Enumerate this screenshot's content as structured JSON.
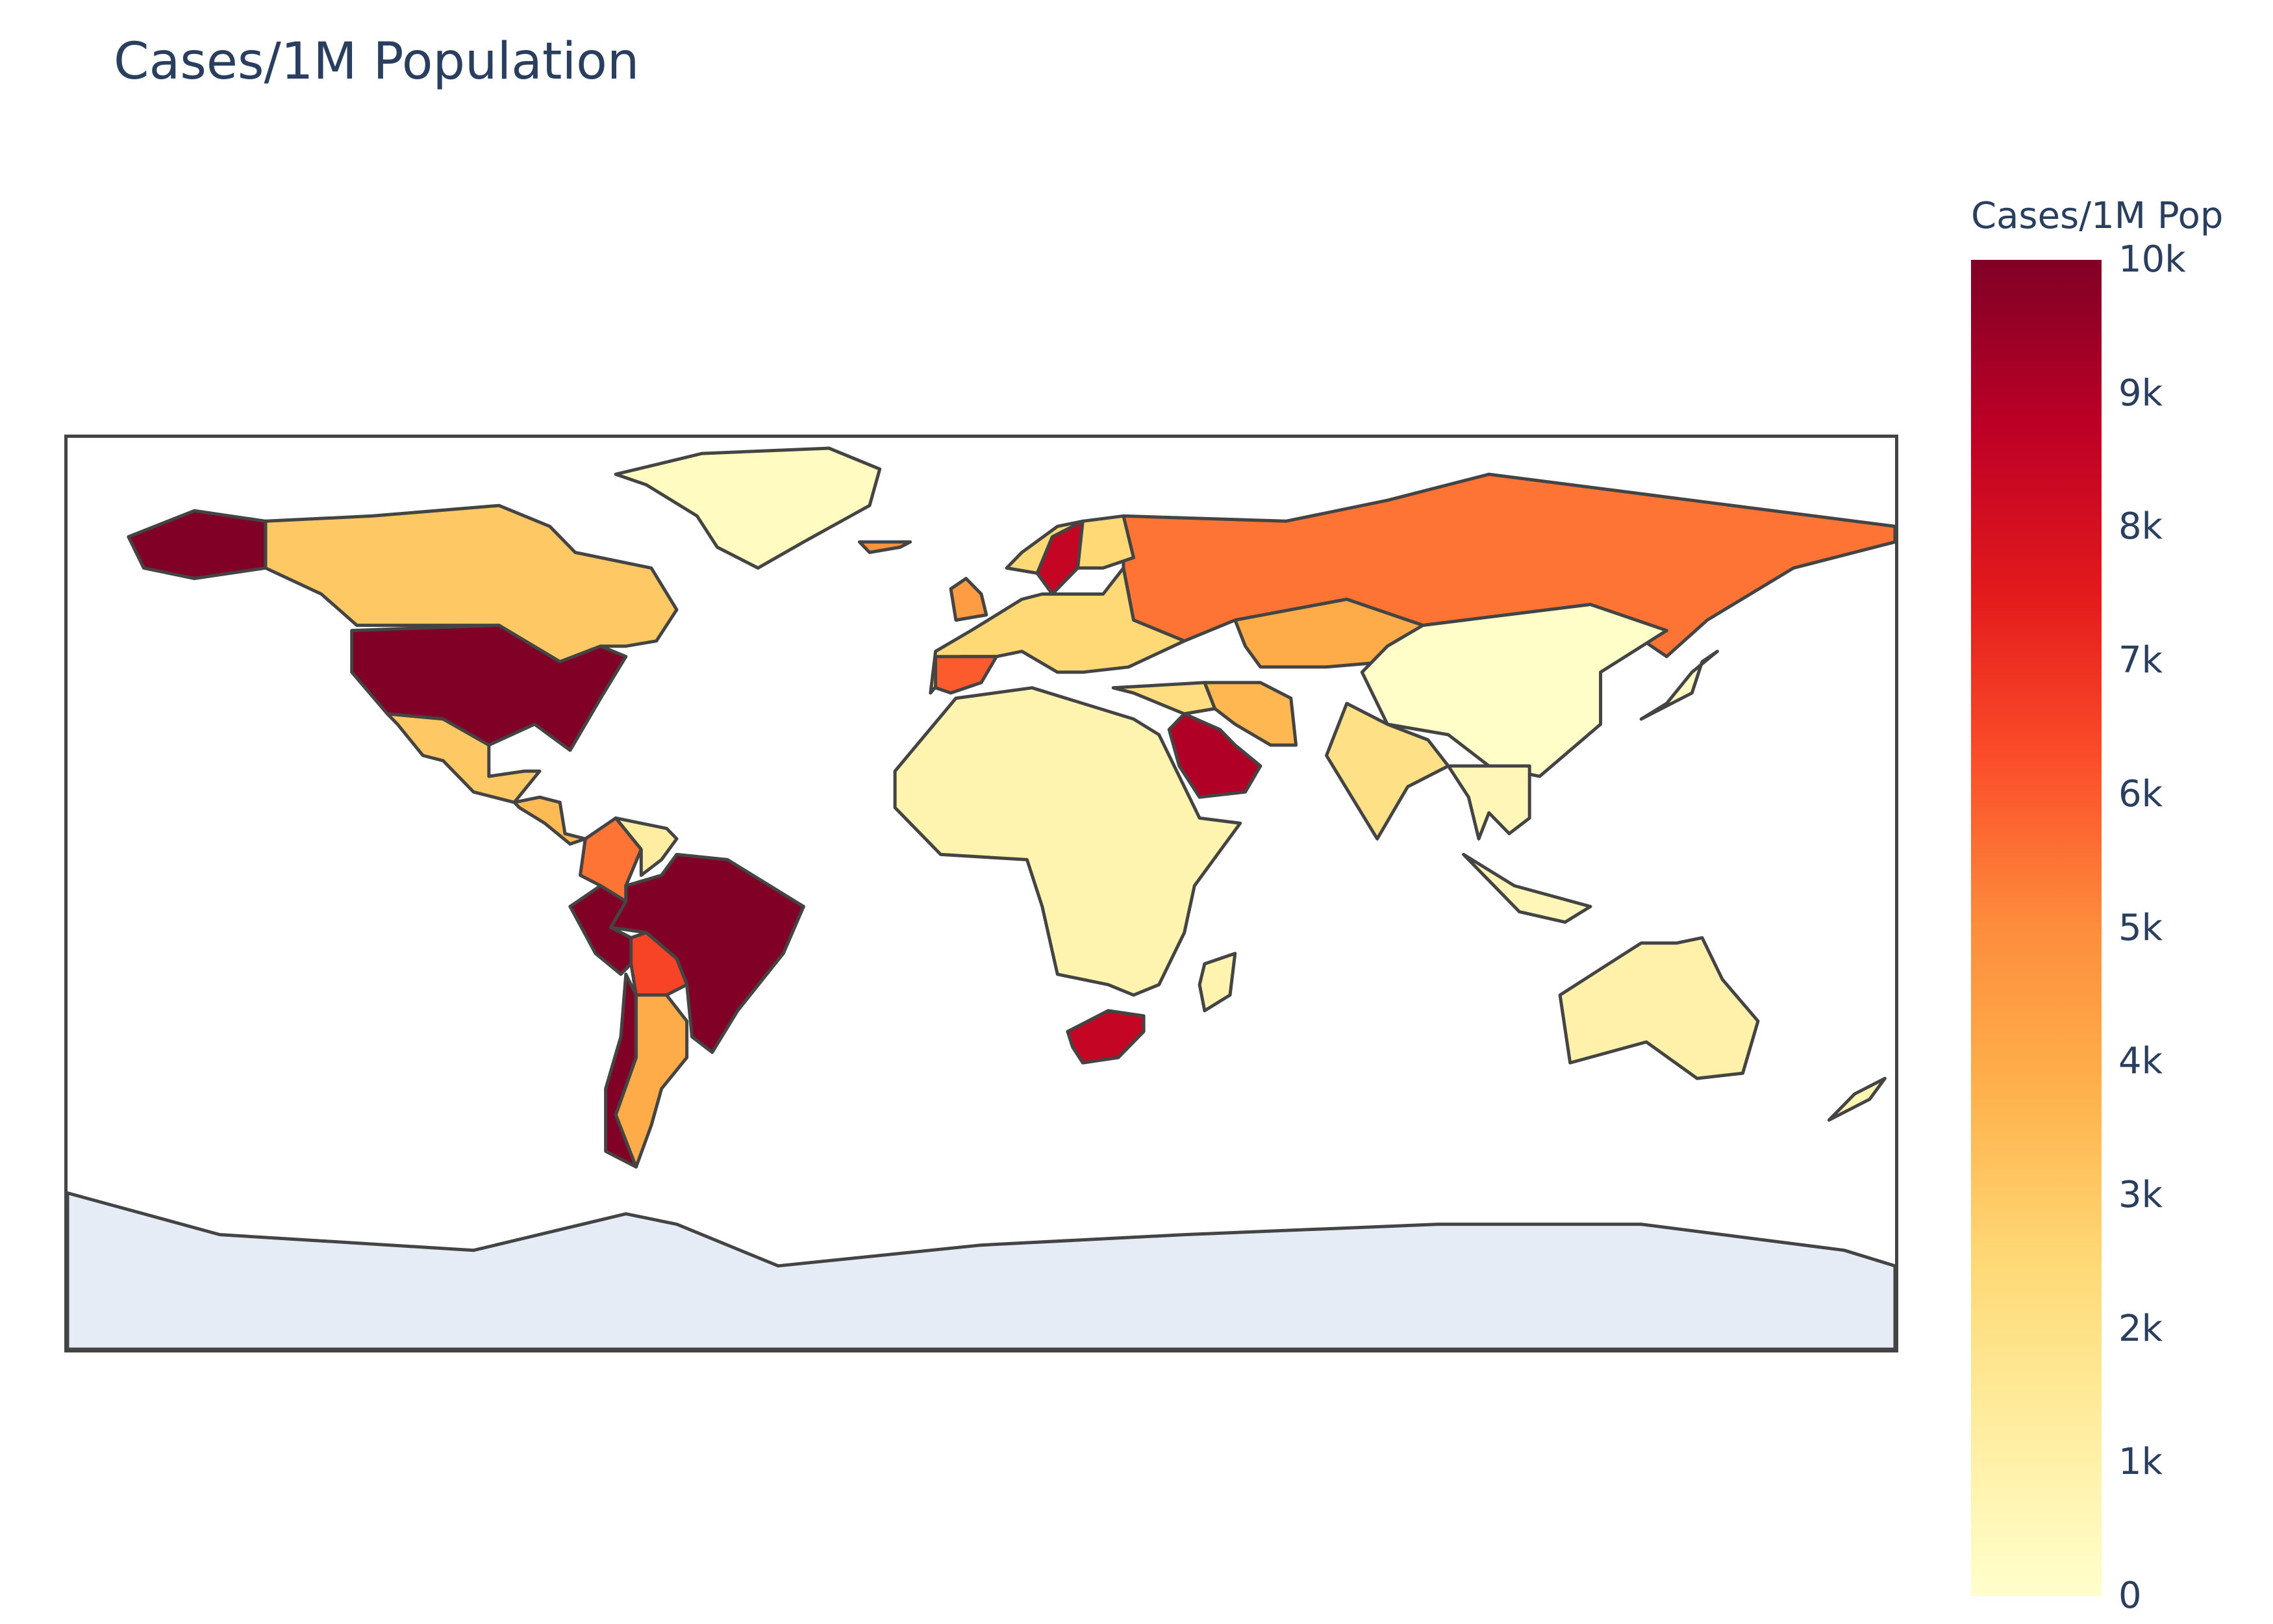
{
  "title": "Cases/1M Population",
  "chart_data": {
    "type": "choropleth",
    "title": "Cases/1M Population",
    "projection": "equirectangular",
    "colorscale": "YlOrRd",
    "colorbar": {
      "title": "Cases/1M Pop",
      "range": [
        0,
        10000
      ],
      "tick_labels": [
        "10k",
        "9k",
        "8k",
        "7k",
        "6k",
        "5k",
        "4k",
        "3k",
        "2k",
        "1k",
        "0"
      ],
      "tick_values": [
        10000,
        9000,
        8000,
        7000,
        6000,
        5000,
        4000,
        3000,
        2000,
        1000,
        0
      ],
      "colors": [
        "#ffffcc",
        "#ffeda0",
        "#fed976",
        "#feb24c",
        "#fd8d3c",
        "#fc4e2a",
        "#e31a1c",
        "#bd0026",
        "#800026"
      ]
    },
    "no_data_color": "#e5ecf6",
    "border_color": "#444444",
    "regions": [
      {
        "name": "United States",
        "value": 10000
      },
      {
        "name": "Brazil",
        "value": 10000
      },
      {
        "name": "Peru",
        "value": 10000
      },
      {
        "name": "Chile",
        "value": 10000
      },
      {
        "name": "Qatar",
        "value": 10000
      },
      {
        "name": "Saudi Arabia",
        "value": 9000
      },
      {
        "name": "South Africa",
        "value": 8500
      },
      {
        "name": "Sweden",
        "value": 8500
      },
      {
        "name": "Bolivia",
        "value": 6500
      },
      {
        "name": "Spain",
        "value": 6000
      },
      {
        "name": "Russia",
        "value": 5500
      },
      {
        "name": "Colombia",
        "value": 5500
      },
      {
        "name": "Kazakhstan",
        "value": 4000
      },
      {
        "name": "Argentina",
        "value": 4000
      },
      {
        "name": "Iran",
        "value": 3600
      },
      {
        "name": "Canada",
        "value": 3000
      },
      {
        "name": "Mexico",
        "value": 3000
      },
      {
        "name": "Europe (other)",
        "value": 2500
      },
      {
        "name": "Panama / Central America",
        "value": 3500
      },
      {
        "name": "India",
        "value": 2000
      },
      {
        "name": "Africa (other)",
        "value": 800
      },
      {
        "name": "Greenland",
        "value": 300
      },
      {
        "name": "China",
        "value": 100
      },
      {
        "name": "Australia",
        "value": 1000
      },
      {
        "name": "New Zealand",
        "value": 700
      },
      {
        "name": "Southeast Asia",
        "value": 600
      },
      {
        "name": "Madagascar",
        "value": 800
      },
      {
        "name": "Antarctica",
        "value": null
      }
    ]
  }
}
